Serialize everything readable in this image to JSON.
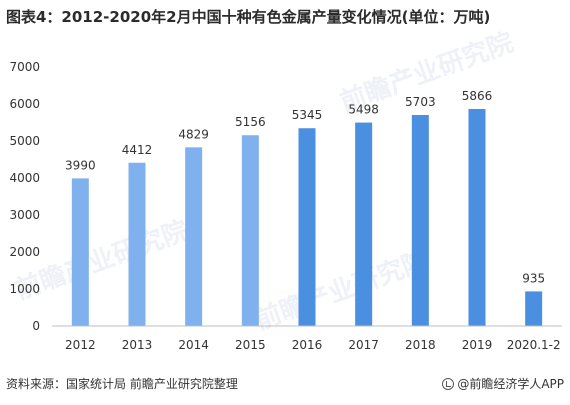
{
  "title": "图表4：2012-2020年2月中国十种有色金属产量变化情况(单位：万吨)",
  "source": "资料来源：国家统计局 前瞻产业研究院整理",
  "brand": "@前瞻经济学人APP",
  "watermark": "前瞻产业研究院",
  "colors": {
    "bar_light": "#7fb1ee",
    "bar_dark": "#4a8fe0",
    "axis": "#bfbfbf",
    "text": "#333333"
  },
  "chart_data": {
    "type": "bar",
    "categories": [
      "2012",
      "2013",
      "2014",
      "2015",
      "2016",
      "2017",
      "2018",
      "2019",
      "2020.1-2"
    ],
    "values": [
      3990,
      4412,
      4829,
      5156,
      5345,
      5498,
      5703,
      5866,
      935
    ],
    "ylim": [
      0,
      7000
    ],
    "yticks": [
      0,
      1000,
      2000,
      3000,
      4000,
      5000,
      6000,
      7000
    ],
    "grid": false,
    "legend": "none"
  }
}
